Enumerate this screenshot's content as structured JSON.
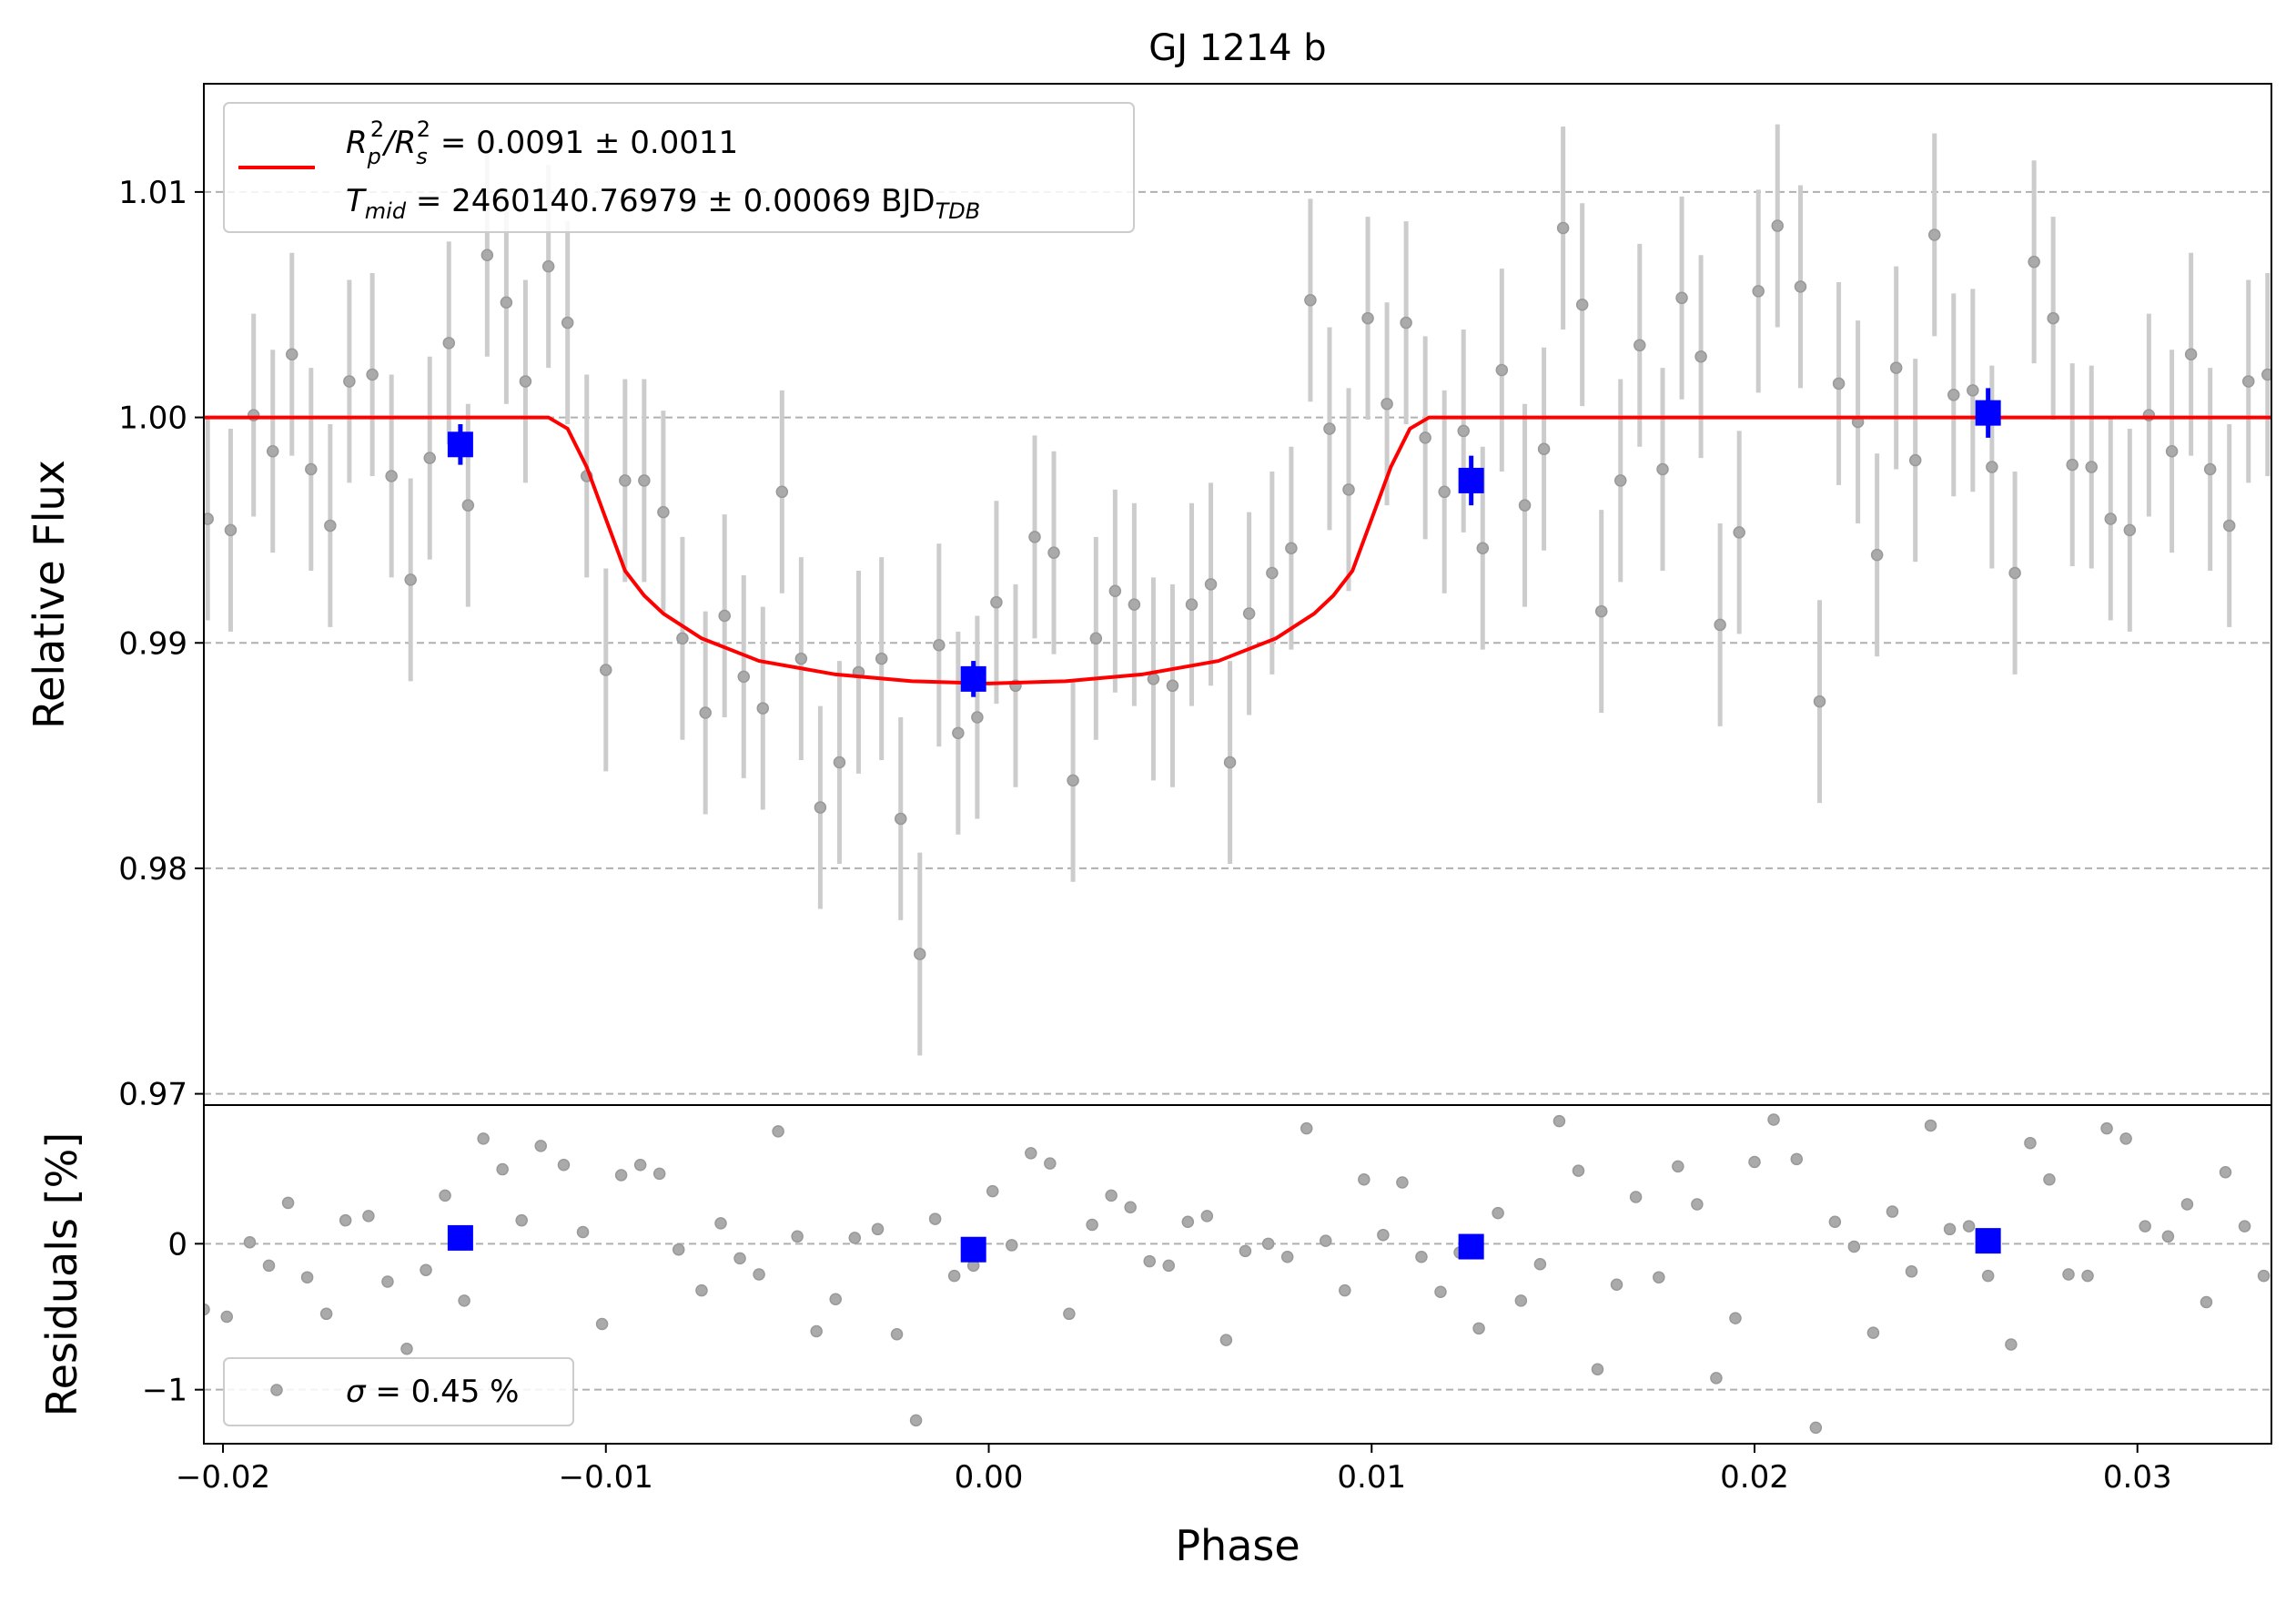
{
  "chart_data": {
    "type": "scatter",
    "title": "GJ 1214 b",
    "xlabel": "Phase",
    "xlim": [
      -0.0205,
      0.0335
    ],
    "x_ticks": [
      -0.02,
      -0.01,
      0.0,
      0.01,
      0.02,
      0.03
    ],
    "x_tick_labels": [
      "−0.02",
      "−0.01",
      "0.00",
      "0.01",
      "0.02",
      "0.03"
    ],
    "flux_panel": {
      "ylabel": "Relative Flux",
      "ylim": [
        0.9695,
        1.0148
      ],
      "y_ticks": [
        0.97,
        0.98,
        0.99,
        1.0,
        1.01
      ],
      "y_tick_labels": [
        "0.97",
        "0.98",
        "0.99",
        "1.00",
        "1.01"
      ],
      "legend": {
        "line1": {
          "base": "R",
          "sub1": "p",
          "sup1": "2",
          "slash": "/R",
          "sub2": "s",
          "sup2": "2",
          "value": " = 0.0091 ± 0.0011"
        },
        "line2": {
          "base": "T",
          "sub": "mid",
          "value": " = 2460140.76979 ± 0.00069 BJD",
          "unit_sub": "TDB"
        }
      },
      "model_line": {
        "name": "transit model",
        "color": "#ff0000",
        "x": [
          -0.0205,
          -0.0115,
          -0.011,
          -0.0105,
          -0.01,
          -0.0095,
          -0.009,
          -0.0085,
          -0.0075,
          -0.006,
          -0.004,
          -0.002,
          0.0,
          0.002,
          0.004,
          0.006,
          0.0075,
          0.0085,
          0.009,
          0.0095,
          0.01,
          0.0105,
          0.011,
          0.0115,
          0.0335
        ],
        "y": [
          1.0,
          1.0,
          0.9995,
          0.9978,
          0.9955,
          0.9932,
          0.9921,
          0.9913,
          0.9902,
          0.9892,
          0.9886,
          0.9883,
          0.9882,
          0.9883,
          0.9886,
          0.9892,
          0.9902,
          0.9913,
          0.9921,
          0.9932,
          0.9955,
          0.9978,
          0.9995,
          1.0,
          1.0
        ]
      },
      "raw_points": {
        "name": "raw data",
        "color": "#999999",
        "x": [
          -0.0204,
          -0.0198,
          -0.0192,
          -0.0187,
          -0.0182,
          -0.0177,
          -0.0172,
          -0.0167,
          -0.0161,
          -0.0156,
          -0.0151,
          -0.0146,
          -0.0141,
          -0.0136,
          -0.0131,
          -0.0126,
          -0.0121,
          -0.0115,
          -0.011,
          -0.0105,
          -0.01,
          -0.0095,
          -0.009,
          -0.0085,
          -0.008,
          -0.0074,
          -0.0069,
          -0.0064,
          -0.0059,
          -0.0054,
          -0.0049,
          -0.0044,
          -0.0039,
          -0.0034,
          -0.0028,
          -0.0023,
          -0.0018,
          -0.0013,
          -0.0008,
          -0.0003,
          0.0002,
          0.0007,
          0.0012,
          0.0017,
          0.0022,
          0.0028,
          0.0033,
          0.0038,
          0.0043,
          0.0048,
          0.0053,
          0.0058,
          0.0063,
          0.0068,
          0.0074,
          0.0079,
          0.0084,
          0.0089,
          0.0094,
          0.0099,
          0.0104,
          0.0109,
          0.0114,
          0.0119,
          0.0124,
          0.0129,
          0.0134,
          0.014,
          0.0145,
          0.015,
          0.0155,
          0.016,
          0.0165,
          0.017,
          0.0176,
          0.0181,
          0.0186,
          0.0191,
          0.0196,
          0.0201,
          0.0206,
          0.0212,
          0.0217,
          0.0222,
          0.0227,
          0.0232,
          0.0237,
          0.0242,
          0.0247,
          0.0252,
          0.0257,
          0.0262,
          0.0268,
          0.0273,
          0.0278,
          0.0283,
          0.0288,
          0.0293,
          0.0298,
          0.0303,
          0.0309,
          0.0314,
          0.0319,
          0.0324,
          0.0329,
          0.0334
        ],
        "y": [
          0.9955,
          0.995,
          1.0001,
          0.9985,
          1.0028,
          0.9977,
          0.9952,
          1.0016,
          1.0019,
          0.9974,
          0.9928,
          0.9982,
          1.0033,
          0.9961,
          1.0072,
          1.0051,
          1.0016,
          1.0067,
          1.0042,
          0.9974,
          0.9888,
          0.9972,
          0.9972,
          0.9958,
          0.9902,
          0.9869,
          0.9912,
          0.9885,
          0.9871,
          0.9967,
          0.9893,
          0.9827,
          0.9847,
          0.9887,
          0.9893,
          0.9822,
          0.9762,
          0.9899,
          0.986,
          0.9867,
          0.9918,
          0.9881,
          0.9947,
          0.994,
          0.9839,
          0.9902,
          0.9923,
          0.9917,
          0.9884,
          0.9881,
          0.9917,
          0.9926,
          0.9847,
          0.9913,
          0.9931,
          0.9942,
          1.0052,
          0.9995,
          0.9968,
          1.0044,
          1.0006,
          1.0042,
          0.9991,
          0.9967,
          0.9994,
          0.9942,
          1.0021,
          0.9961,
          0.9986,
          1.0084,
          1.005,
          0.9914,
          0.9972,
          1.0032,
          0.9977,
          1.0053,
          1.0027,
          0.9908,
          0.9949,
          1.0056,
          1.0085,
          1.0058,
          0.9874,
          1.0015,
          0.9998,
          0.9939,
          1.0022,
          0.9981,
          1.0081,
          1.001,
          1.0012,
          0.9978,
          0.9931,
          1.0069,
          1.0044,
          0.9979,
          0.9978,
          0.9955,
          0.995,
          1.0001,
          0.9985,
          1.0028,
          0.9977,
          0.9952,
          1.0016,
          1.0019
        ],
        "error": 0.0045
      },
      "binned_points": {
        "name": "binned data",
        "color": "#0000ff",
        "x": [
          -0.0138,
          -0.0004,
          0.0126,
          0.0261
        ],
        "y": [
          0.9988,
          0.9884,
          0.9972,
          1.0002
        ],
        "error": [
          0.0009,
          0.0008,
          0.0011,
          0.0011
        ]
      }
    },
    "residual_panel": {
      "ylabel": "Residuals [%]",
      "ylim": [
        -1.37,
        0.95
      ],
      "y_ticks": [
        -1,
        0
      ],
      "y_tick_labels": [
        "−1",
        "0"
      ],
      "legend": {
        "symbol": "σ",
        "text": " = 0.45 %"
      },
      "raw_points": {
        "name": "residuals",
        "color": "#999999",
        "x": [
          -0.0205,
          -0.0199,
          -0.0193,
          -0.0188,
          -0.0183,
          -0.0178,
          -0.0173,
          -0.0168,
          -0.0162,
          -0.0157,
          -0.0152,
          -0.0147,
          -0.0142,
          -0.0137,
          -0.0132,
          -0.0127,
          -0.0122,
          -0.0117,
          -0.0111,
          -0.0106,
          -0.0101,
          -0.0096,
          -0.0091,
          -0.0086,
          -0.0081,
          -0.0075,
          -0.007,
          -0.0065,
          -0.006,
          -0.0055,
          -0.005,
          -0.0045,
          -0.004,
          -0.0035,
          -0.0029,
          -0.0024,
          -0.0019,
          -0.0014,
          -0.0009,
          -0.0004,
          0.0001,
          0.0006,
          0.0011,
          0.0016,
          0.0021,
          0.0027,
          0.0032,
          0.0037,
          0.0042,
          0.0047,
          0.0052,
          0.0057,
          0.0062,
          0.0067,
          0.0073,
          0.0078,
          0.0083,
          0.0088,
          0.0093,
          0.0098,
          0.0103,
          0.0108,
          0.0113,
          0.0118,
          0.0123,
          0.0128,
          0.0133,
          0.0139,
          0.0144,
          0.0149,
          0.0154,
          0.0159,
          0.0164,
          0.0169,
          0.0175,
          0.018,
          0.0185,
          0.019,
          0.0195,
          0.02,
          0.0205,
          0.0211,
          0.0216,
          0.0221,
          0.0226,
          0.0231,
          0.0236,
          0.0241,
          0.0246,
          0.0251,
          0.0256,
          0.0261,
          0.0267,
          0.0272,
          0.0277,
          0.0282,
          0.0287,
          0.0292,
          0.0297,
          0.0302,
          0.0308,
          0.0313,
          0.0318,
          0.0323,
          0.0328,
          0.0333
        ],
        "y": [
          -0.45,
          -0.5,
          0.01,
          -0.15,
          0.28,
          -0.23,
          -0.48,
          0.16,
          0.19,
          -0.26,
          -0.72,
          -0.18,
          0.33,
          -0.39,
          0.72,
          0.51,
          0.16,
          0.67,
          0.54,
          0.08,
          -0.55,
          0.47,
          0.54,
          0.48,
          -0.04,
          -0.32,
          0.14,
          -0.1,
          -0.21,
          0.77,
          0.05,
          -0.6,
          -0.38,
          0.04,
          0.1,
          -0.62,
          -1.21,
          0.17,
          -0.22,
          -0.15,
          0.36,
          -0.01,
          0.62,
          0.55,
          -0.48,
          0.13,
          0.33,
          0.25,
          -0.12,
          -0.15,
          0.15,
          0.19,
          -0.66,
          -0.05,
          0.0,
          -0.09,
          0.79,
          0.02,
          -0.32,
          0.44,
          0.06,
          0.42,
          -0.09,
          -0.33,
          -0.06,
          -0.58,
          0.21,
          -0.39,
          -0.14,
          0.84,
          0.5,
          -0.86,
          -0.28,
          0.32,
          -0.23,
          0.53,
          0.27,
          -0.92,
          -0.51,
          0.56,
          0.85,
          0.58,
          -1.26,
          0.15,
          -0.02,
          -0.61,
          0.22,
          -0.19,
          0.81,
          0.1,
          0.12,
          -0.22,
          -0.69,
          0.69,
          0.44,
          -0.21,
          -0.22,
          0.79,
          0.72,
          0.12,
          0.05,
          0.27,
          -0.4,
          0.49,
          0.12,
          -0.22
        ],
        "legend_marker_y": -0.98
      },
      "binned_points": {
        "name": "binned residuals",
        "color": "#0000ff",
        "x": [
          -0.0138,
          -0.0004,
          0.0126,
          0.0261
        ],
        "y": [
          0.04,
          -0.04,
          -0.02,
          0.02
        ]
      }
    }
  }
}
